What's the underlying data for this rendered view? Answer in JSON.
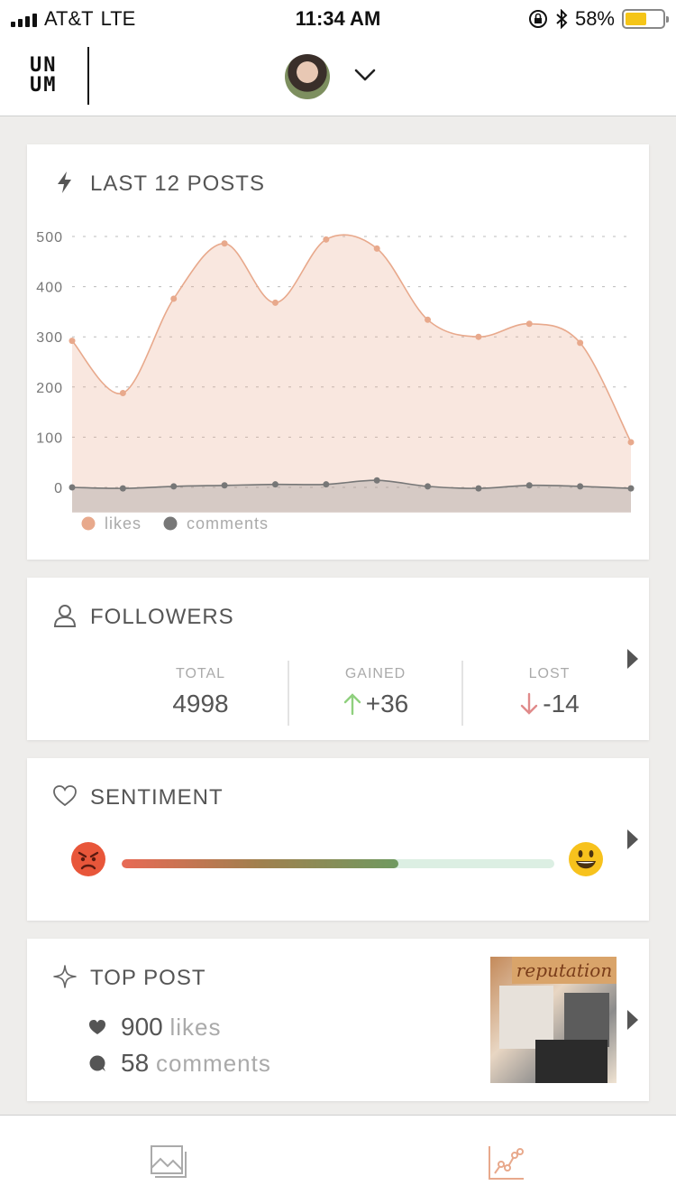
{
  "status_bar": {
    "carrier": "AT&T",
    "network": "LTE",
    "time": "11:34 AM",
    "battery_percent_label": "58%",
    "battery_level": 0.58,
    "icons": [
      "signal-icon",
      "orientation-lock-icon",
      "bluetooth-icon",
      "battery-icon"
    ]
  },
  "header": {
    "logo_text": [
      "UN",
      "UM"
    ],
    "account_avatar": "avatar",
    "dropdown_icon": "chevron-down-icon"
  },
  "cards": {
    "posts": {
      "title": "LAST 12 POSTS",
      "icon": "lightning-icon"
    },
    "followers": {
      "title": "FOLLOWERS",
      "icon": "user-icon",
      "total_label": "TOTAL",
      "total_value": "4998",
      "gained_label": "GAINED",
      "gained_value": "+36",
      "lost_label": "LOST",
      "lost_value": "-14"
    },
    "sentiment": {
      "title": "SENTIMENT",
      "icon": "heart-outline-icon",
      "level": 0.64,
      "left_emoji": "angry-face-icon",
      "right_emoji": "smiley-face-icon"
    },
    "top_post": {
      "title": "TOP POST",
      "icon": "sparkle-icon",
      "likes_count": "900",
      "likes_label": "likes",
      "comments_count": "58",
      "comments_label": "comments",
      "thumb_text": "reputation"
    }
  },
  "chart_data": {
    "type": "area",
    "x": [
      1,
      2,
      3,
      4,
      5,
      6,
      7,
      8,
      9,
      10,
      11,
      12
    ],
    "series": [
      {
        "name": "likes",
        "color": "#e8a98c",
        "values": [
          292,
          188,
          376,
          486,
          368,
          494,
          476,
          334,
          300,
          326,
          288,
          90
        ]
      },
      {
        "name": "comments",
        "color": "#777777",
        "values": [
          0,
          -2,
          2,
          4,
          6,
          6,
          14,
          2,
          -2,
          4,
          2,
          -2
        ]
      }
    ],
    "yticks": [
      "0",
      "100",
      "200",
      "300",
      "400",
      "500"
    ],
    "ylim": [
      -50,
      500
    ],
    "grid": true,
    "legend": "bottom-left"
  },
  "tabbar": {
    "items": [
      {
        "icon": "image-icon",
        "active": false
      },
      {
        "icon": "analytics-icon",
        "active": true
      }
    ],
    "accent": "#e8a98c"
  }
}
